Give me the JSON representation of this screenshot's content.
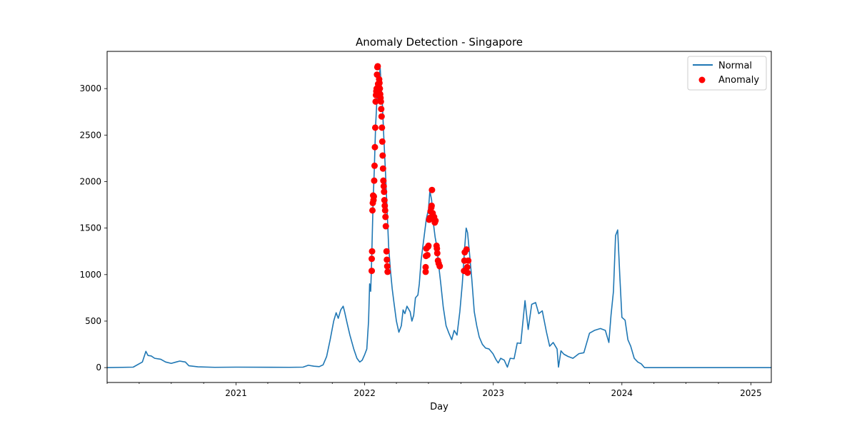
{
  "chart_data": {
    "type": "line",
    "title": "Anomaly Detection - Singapore",
    "xlabel": "Day",
    "ylabel": "",
    "x_domain": [
      "2020-01-01",
      "2025-02-28"
    ],
    "ylim": [
      -160,
      3400
    ],
    "grid": false,
    "legend_position": "top-right",
    "colors": {
      "normal": "#1f77b4",
      "anomaly": "#ff0000"
    },
    "x_major_ticks": [
      {
        "date": "2021-01-01",
        "label": "2021"
      },
      {
        "date": "2022-01-01",
        "label": "2022"
      },
      {
        "date": "2023-01-01",
        "label": "2023"
      },
      {
        "date": "2024-01-01",
        "label": "2024"
      },
      {
        "date": "2025-01-01",
        "label": "2025"
      }
    ],
    "x_minor_ticks": [
      "2020-01-01",
      "2020-04-01",
      "2020-07-01",
      "2020-10-01",
      "2021-04-01",
      "2021-07-01",
      "2021-10-01",
      "2022-04-01",
      "2022-07-01",
      "2022-10-01",
      "2023-04-01",
      "2023-07-01",
      "2023-10-01",
      "2024-04-01",
      "2024-07-01",
      "2024-10-01"
    ],
    "y_ticks": [
      0,
      500,
      1000,
      1500,
      2000,
      2500,
      3000
    ],
    "series": [
      {
        "name": "Normal",
        "style": "line",
        "points": [
          [
            "2020-01-01",
            0
          ],
          [
            "2020-03-15",
            5
          ],
          [
            "2020-04-10",
            60
          ],
          [
            "2020-04-20",
            175
          ],
          [
            "2020-04-26",
            130
          ],
          [
            "2020-05-05",
            125
          ],
          [
            "2020-05-15",
            100
          ],
          [
            "2020-06-01",
            90
          ],
          [
            "2020-06-15",
            60
          ],
          [
            "2020-07-01",
            45
          ],
          [
            "2020-07-15",
            60
          ],
          [
            "2020-07-25",
            70
          ],
          [
            "2020-08-10",
            60
          ],
          [
            "2020-08-20",
            20
          ],
          [
            "2020-09-15",
            8
          ],
          [
            "2020-11-01",
            3
          ],
          [
            "2021-01-01",
            5
          ],
          [
            "2021-06-01",
            3
          ],
          [
            "2021-07-10",
            5
          ],
          [
            "2021-07-25",
            25
          ],
          [
            "2021-08-10",
            15
          ],
          [
            "2021-08-25",
            10
          ],
          [
            "2021-09-05",
            30
          ],
          [
            "2021-09-15",
            120
          ],
          [
            "2021-09-25",
            300
          ],
          [
            "2021-10-05",
            500
          ],
          [
            "2021-10-12",
            590
          ],
          [
            "2021-10-18",
            530
          ],
          [
            "2021-10-25",
            620
          ],
          [
            "2021-11-01",
            660
          ],
          [
            "2021-11-05",
            600
          ],
          [
            "2021-11-12",
            480
          ],
          [
            "2021-11-20",
            350
          ],
          [
            "2021-12-01",
            200
          ],
          [
            "2021-12-10",
            100
          ],
          [
            "2021-12-18",
            60
          ],
          [
            "2021-12-25",
            80
          ],
          [
            "2022-01-01",
            140
          ],
          [
            "2022-01-07",
            200
          ],
          [
            "2022-01-12",
            500
          ],
          [
            "2022-01-15",
            900
          ],
          [
            "2022-01-18",
            820
          ],
          [
            "2022-01-20",
            1050
          ],
          [
            "2022-01-25",
            1800
          ],
          [
            "2022-01-28",
            2100
          ],
          [
            "2022-02-01",
            2600
          ],
          [
            "2022-02-05",
            2900
          ],
          [
            "2022-02-10",
            3100
          ],
          [
            "2022-02-14",
            3220
          ],
          [
            "2022-02-17",
            3000
          ],
          [
            "2022-02-20",
            2850
          ],
          [
            "2022-02-24",
            2500
          ],
          [
            "2022-03-01",
            2100
          ],
          [
            "2022-03-05",
            1750
          ],
          [
            "2022-03-10",
            1300
          ],
          [
            "2022-03-15",
            1050
          ],
          [
            "2022-03-20",
            850
          ],
          [
            "2022-03-25",
            700
          ],
          [
            "2022-04-01",
            500
          ],
          [
            "2022-04-08",
            380
          ],
          [
            "2022-04-15",
            450
          ],
          [
            "2022-04-20",
            620
          ],
          [
            "2022-04-25",
            580
          ],
          [
            "2022-05-01",
            660
          ],
          [
            "2022-05-10",
            600
          ],
          [
            "2022-05-15",
            500
          ],
          [
            "2022-05-20",
            560
          ],
          [
            "2022-05-25",
            750
          ],
          [
            "2022-06-01",
            780
          ],
          [
            "2022-06-05",
            900
          ],
          [
            "2022-06-10",
            1150
          ],
          [
            "2022-06-15",
            1300
          ],
          [
            "2022-06-20",
            1450
          ],
          [
            "2022-06-25",
            1600
          ],
          [
            "2022-07-01",
            1700
          ],
          [
            "2022-07-05",
            1900
          ],
          [
            "2022-07-10",
            1800
          ],
          [
            "2022-07-15",
            1550
          ],
          [
            "2022-07-20",
            1400
          ],
          [
            "2022-07-25",
            1300
          ],
          [
            "2022-07-30",
            1100
          ],
          [
            "2022-08-05",
            900
          ],
          [
            "2022-08-12",
            650
          ],
          [
            "2022-08-20",
            450
          ],
          [
            "2022-08-28",
            370
          ],
          [
            "2022-09-05",
            300
          ],
          [
            "2022-09-12",
            400
          ],
          [
            "2022-09-20",
            350
          ],
          [
            "2022-09-28",
            600
          ],
          [
            "2022-10-05",
            900
          ],
          [
            "2022-10-12",
            1300
          ],
          [
            "2022-10-16",
            1500
          ],
          [
            "2022-10-20",
            1450
          ],
          [
            "2022-10-25",
            1250
          ],
          [
            "2022-11-01",
            950
          ],
          [
            "2022-11-08",
            600
          ],
          [
            "2022-11-15",
            450
          ],
          [
            "2022-11-22",
            330
          ],
          [
            "2022-12-01",
            250
          ],
          [
            "2022-12-10",
            210
          ],
          [
            "2022-12-20",
            200
          ],
          [
            "2022-12-31",
            150
          ],
          [
            "2023-01-08",
            90
          ],
          [
            "2023-01-15",
            50
          ],
          [
            "2023-01-22",
            100
          ],
          [
            "2023-02-01",
            80
          ],
          [
            "2023-02-10",
            5
          ],
          [
            "2023-02-18",
            100
          ],
          [
            "2023-03-01",
            95
          ],
          [
            "2023-03-10",
            265
          ],
          [
            "2023-03-20",
            260
          ],
          [
            "2023-04-01",
            720
          ],
          [
            "2023-04-10",
            410
          ],
          [
            "2023-04-20",
            680
          ],
          [
            "2023-05-01",
            700
          ],
          [
            "2023-05-10",
            580
          ],
          [
            "2023-05-20",
            610
          ],
          [
            "2023-06-01",
            380
          ],
          [
            "2023-06-10",
            230
          ],
          [
            "2023-06-20",
            270
          ],
          [
            "2023-07-01",
            200
          ],
          [
            "2023-07-05",
            5
          ],
          [
            "2023-07-12",
            180
          ],
          [
            "2023-07-20",
            145
          ],
          [
            "2023-08-01",
            120
          ],
          [
            "2023-08-15",
            100
          ],
          [
            "2023-09-01",
            150
          ],
          [
            "2023-09-15",
            160
          ],
          [
            "2023-10-01",
            370
          ],
          [
            "2023-10-15",
            400
          ],
          [
            "2023-11-01",
            420
          ],
          [
            "2023-11-15",
            400
          ],
          [
            "2023-11-25",
            270
          ],
          [
            "2023-12-01",
            560
          ],
          [
            "2023-12-08",
            820
          ],
          [
            "2023-12-14",
            1420
          ],
          [
            "2023-12-20",
            1480
          ],
          [
            "2023-12-26",
            990
          ],
          [
            "2024-01-01",
            540
          ],
          [
            "2024-01-10",
            510
          ],
          [
            "2024-01-18",
            300
          ],
          [
            "2024-01-26",
            230
          ],
          [
            "2024-02-05",
            100
          ],
          [
            "2024-02-15",
            60
          ],
          [
            "2024-02-25",
            40
          ],
          [
            "2024-03-05",
            0
          ],
          [
            "2025-02-28",
            0
          ]
        ]
      },
      {
        "name": "Anomaly",
        "style": "scatter",
        "points": [
          [
            "2022-01-21",
            1040
          ],
          [
            "2022-01-21",
            1170
          ],
          [
            "2022-01-22",
            1250
          ],
          [
            "2022-01-23",
            1690
          ],
          [
            "2022-01-24",
            1770
          ],
          [
            "2022-01-25",
            1850
          ],
          [
            "2022-01-26",
            1800
          ],
          [
            "2022-01-27",
            1840
          ],
          [
            "2022-01-28",
            2010
          ],
          [
            "2022-01-29",
            2170
          ],
          [
            "2022-01-30",
            2370
          ],
          [
            "2022-01-31",
            2580
          ],
          [
            "2022-02-01",
            2860
          ],
          [
            "2022-02-02",
            2930
          ],
          [
            "2022-02-03",
            2970
          ],
          [
            "2022-02-04",
            3000
          ],
          [
            "2022-02-05",
            3150
          ],
          [
            "2022-02-06",
            3230
          ],
          [
            "2022-02-07",
            3240
          ],
          [
            "2022-02-08",
            3050
          ],
          [
            "2022-02-09",
            2960
          ],
          [
            "2022-02-10",
            3020
          ],
          [
            "2022-02-11",
            3100
          ],
          [
            "2022-02-12",
            3060
          ],
          [
            "2022-02-13",
            3000
          ],
          [
            "2022-02-14",
            2940
          ],
          [
            "2022-02-15",
            2900
          ],
          [
            "2022-02-16",
            2860
          ],
          [
            "2022-02-17",
            2780
          ],
          [
            "2022-02-18",
            2700
          ],
          [
            "2022-02-19",
            2580
          ],
          [
            "2022-02-20",
            2430
          ],
          [
            "2022-02-21",
            2280
          ],
          [
            "2022-02-22",
            2140
          ],
          [
            "2022-02-23",
            2010
          ],
          [
            "2022-02-24",
            1950
          ],
          [
            "2022-02-25",
            1890
          ],
          [
            "2022-02-26",
            1800
          ],
          [
            "2022-02-27",
            1740
          ],
          [
            "2022-02-28",
            1690
          ],
          [
            "2022-03-01",
            1620
          ],
          [
            "2022-03-02",
            1520
          ],
          [
            "2022-03-04",
            1250
          ],
          [
            "2022-03-05",
            1160
          ],
          [
            "2022-03-06",
            1090
          ],
          [
            "2022-03-07",
            1030
          ],
          [
            "2022-06-23",
            1030
          ],
          [
            "2022-06-23",
            1080
          ],
          [
            "2022-06-24",
            1200
          ],
          [
            "2022-06-25",
            1280
          ],
          [
            "2022-06-28",
            1210
          ],
          [
            "2022-06-30",
            1300
          ],
          [
            "2022-07-01",
            1310
          ],
          [
            "2022-07-03",
            1590
          ],
          [
            "2022-07-05",
            1610
          ],
          [
            "2022-07-07",
            1680
          ],
          [
            "2022-07-09",
            1720
          ],
          [
            "2022-07-10",
            1740
          ],
          [
            "2022-07-11",
            1910
          ],
          [
            "2022-07-13",
            1660
          ],
          [
            "2022-07-15",
            1600
          ],
          [
            "2022-07-17",
            1620
          ],
          [
            "2022-07-19",
            1560
          ],
          [
            "2022-07-21",
            1580
          ],
          [
            "2022-07-24",
            1310
          ],
          [
            "2022-07-25",
            1280
          ],
          [
            "2022-07-26",
            1230
          ],
          [
            "2022-07-28",
            1150
          ],
          [
            "2022-07-30",
            1120
          ],
          [
            "2022-08-02",
            1090
          ],
          [
            "2022-10-10",
            1040
          ],
          [
            "2022-10-11",
            1150
          ],
          [
            "2022-10-12",
            1240
          ],
          [
            "2022-10-17",
            1270
          ],
          [
            "2022-10-19",
            1080
          ],
          [
            "2022-10-20",
            1020
          ],
          [
            "2022-10-22",
            1150
          ]
        ]
      }
    ]
  }
}
